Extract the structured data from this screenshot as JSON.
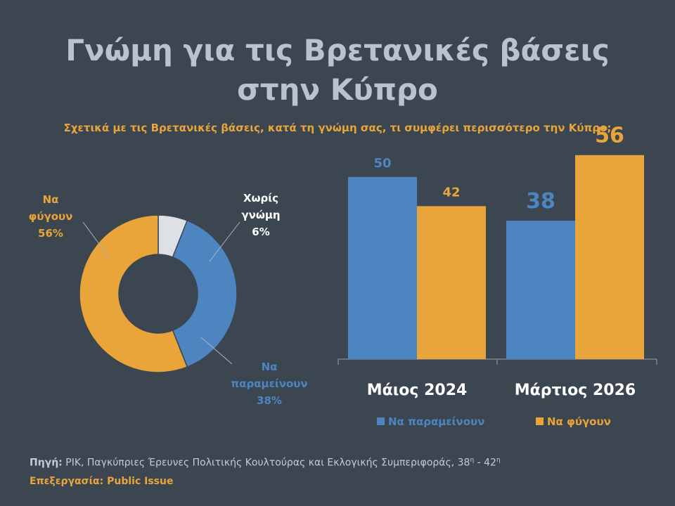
{
  "title_line1": "Γνώμη για τις Βρετανικές βάσεις",
  "title_line2": "στην Κύπρο",
  "subtitle": "Σχετικά με τις Βρετανικές βάσεις, κατά τη γνώμη σας, τι συμφέρει περισσότερο την Κύπρο;",
  "colors": {
    "remain": "#4d85c1",
    "leave": "#e9a43a",
    "no_opinion": "#dde1e6",
    "background": "#3c4650"
  },
  "chart_data": [
    {
      "type": "pie",
      "subtype": "donut",
      "slices": [
        {
          "label_lines": [
            "Χωρίς",
            "γνώμη",
            "6%"
          ],
          "value": 6,
          "color": "#dde1e6"
        },
        {
          "label_lines": [
            "Να",
            "παραμείνουν",
            "38%"
          ],
          "value": 38,
          "color": "#4d85c1"
        },
        {
          "label_lines": [
            "Να",
            "φύγουν",
            "56%"
          ],
          "value": 56,
          "color": "#e9a43a"
        }
      ]
    },
    {
      "type": "bar",
      "categories": [
        "Μάιος 2024",
        "Μάρτιος 2026"
      ],
      "series": [
        {
          "name": "Να παραμείνουν",
          "values": [
            50,
            38
          ],
          "color": "#4d85c1"
        },
        {
          "name": "Να φύγουν",
          "values": [
            42,
            56
          ],
          "color": "#e9a43a"
        }
      ],
      "ylim": [
        0,
        60
      ],
      "grid": false,
      "legend": "bottom"
    }
  ],
  "source": {
    "label": "Πηγή:",
    "text": "ΡΙΚ, Παγκύπριες Έρευνες Πολιτικής Κουλτούρας  και Εκλογικής Συμπεριφοράς, 38",
    "sup1": "η",
    "mid": " - 42",
    "sup2": "η"
  },
  "processing": {
    "label": "Επεξεργασία:",
    "text": "Public Issue"
  }
}
